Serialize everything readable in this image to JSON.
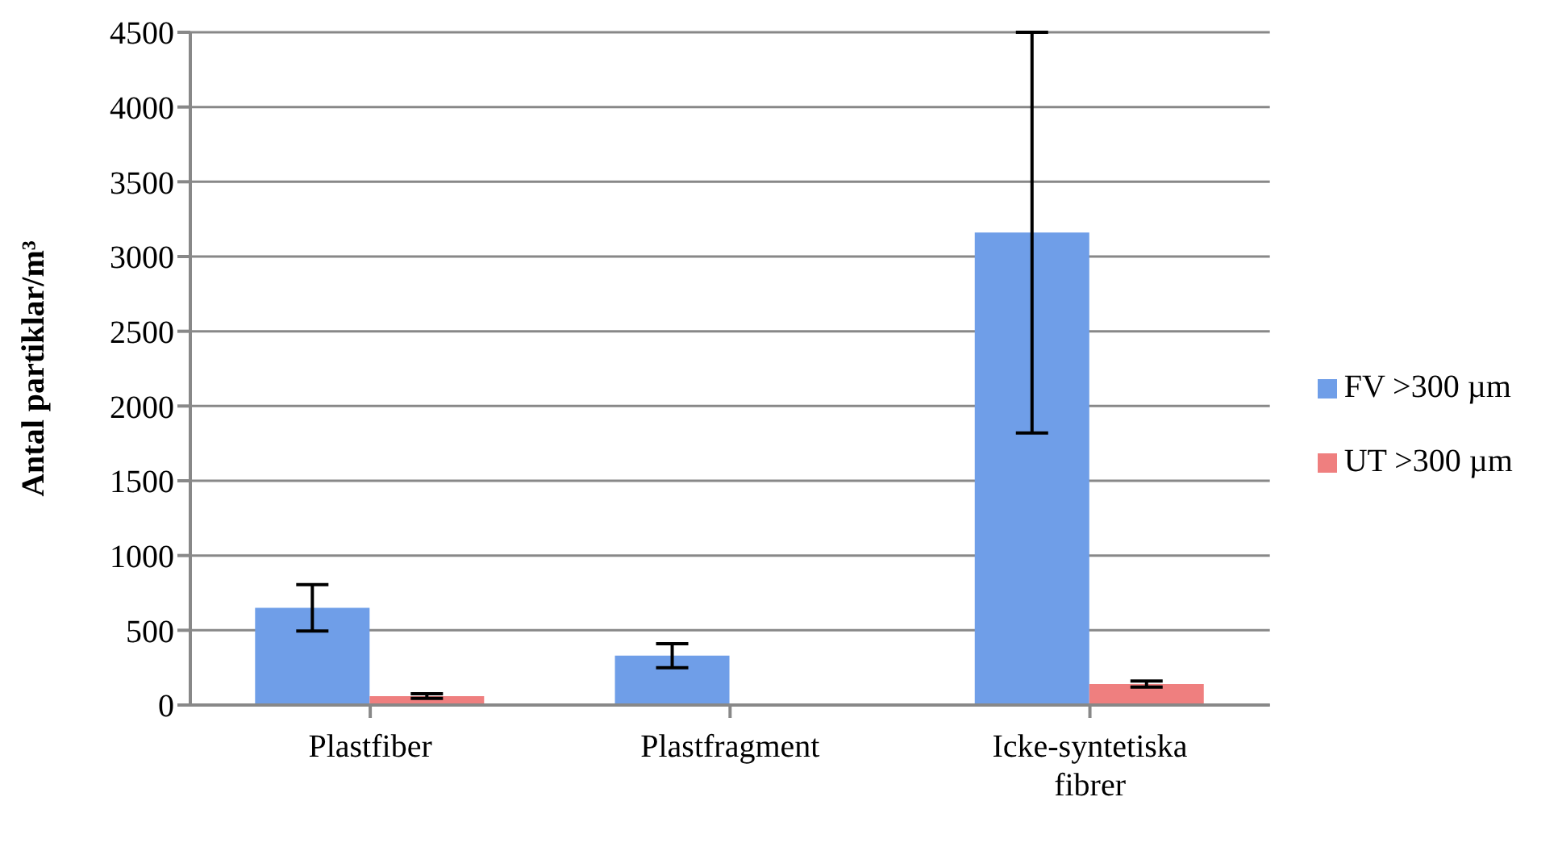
{
  "chart_data": {
    "type": "bar",
    "ylabel": "Antal partiklar/m³",
    "categories": [
      "Plastfiber",
      "Plastfragment",
      "Icke-syntetiska fibrer"
    ],
    "series": [
      {
        "name": "FV >300 µm",
        "color": "#6f9ee8",
        "values": [
          650,
          330,
          3160
        ],
        "errors": [
          155,
          80,
          1340
        ]
      },
      {
        "name": "UT >300 µm",
        "color": "#ef7f7f",
        "values": [
          60,
          0,
          140
        ],
        "errors": [
          15,
          null,
          20
        ]
      }
    ],
    "ylim": [
      0,
      4500
    ],
    "yticks": [
      0,
      500,
      1000,
      1500,
      2000,
      2500,
      3000,
      3500,
      4000,
      4500
    ],
    "grid": "y",
    "legend": "right"
  }
}
